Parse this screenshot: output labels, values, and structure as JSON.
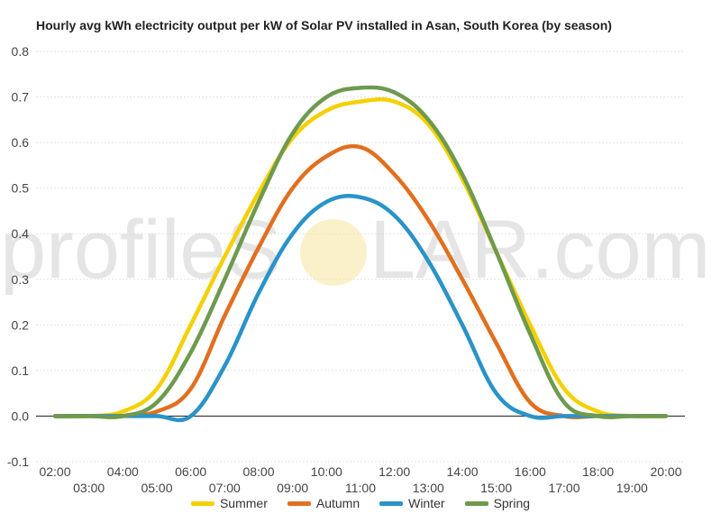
{
  "watermark": {
    "text_left": "profileS",
    "text_right": "LAR.com"
  },
  "chart_data": {
    "type": "line",
    "title": "Hourly avg kWh electricity output per kW of Solar PV installed in Asan, South Korea (by season)",
    "xlabel": "",
    "ylabel": "",
    "ylim": [
      -0.1,
      0.8
    ],
    "yticks": [
      "0.8",
      "0.7",
      "0.6",
      "0.5",
      "0.4",
      "0.3",
      "0.2",
      "0.1",
      "0.0",
      "-0.1"
    ],
    "x": [
      "02:00",
      "03:00",
      "04:00",
      "05:00",
      "06:00",
      "07:00",
      "08:00",
      "09:00",
      "10:00",
      "11:00",
      "12:00",
      "13:00",
      "14:00",
      "15:00",
      "16:00",
      "17:00",
      "18:00",
      "19:00",
      "20:00"
    ],
    "grid": true,
    "legend_position": "bottom",
    "series": [
      {
        "name": "Summer",
        "color": "#F5D000",
        "values": [
          0.0,
          0.0,
          0.01,
          0.06,
          0.2,
          0.35,
          0.49,
          0.61,
          0.67,
          0.69,
          0.69,
          0.64,
          0.52,
          0.36,
          0.2,
          0.06,
          0.01,
          0.0,
          0.0
        ]
      },
      {
        "name": "Autumn",
        "color": "#E07020",
        "values": [
          0.0,
          0.0,
          0.0,
          0.01,
          0.06,
          0.22,
          0.37,
          0.5,
          0.57,
          0.59,
          0.53,
          0.43,
          0.3,
          0.16,
          0.03,
          0.0,
          0.0,
          0.0,
          0.0
        ]
      },
      {
        "name": "Winter",
        "color": "#2A93C8",
        "values": [
          0.0,
          0.0,
          0.0,
          0.0,
          0.0,
          0.11,
          0.27,
          0.4,
          0.47,
          0.48,
          0.44,
          0.34,
          0.2,
          0.05,
          0.0,
          0.0,
          0.0,
          0.0,
          0.0
        ]
      },
      {
        "name": "Spring",
        "color": "#6E9A4E",
        "values": [
          0.0,
          0.0,
          0.0,
          0.03,
          0.14,
          0.3,
          0.47,
          0.62,
          0.7,
          0.72,
          0.71,
          0.65,
          0.53,
          0.36,
          0.18,
          0.03,
          0.0,
          0.0,
          0.0
        ]
      }
    ]
  }
}
